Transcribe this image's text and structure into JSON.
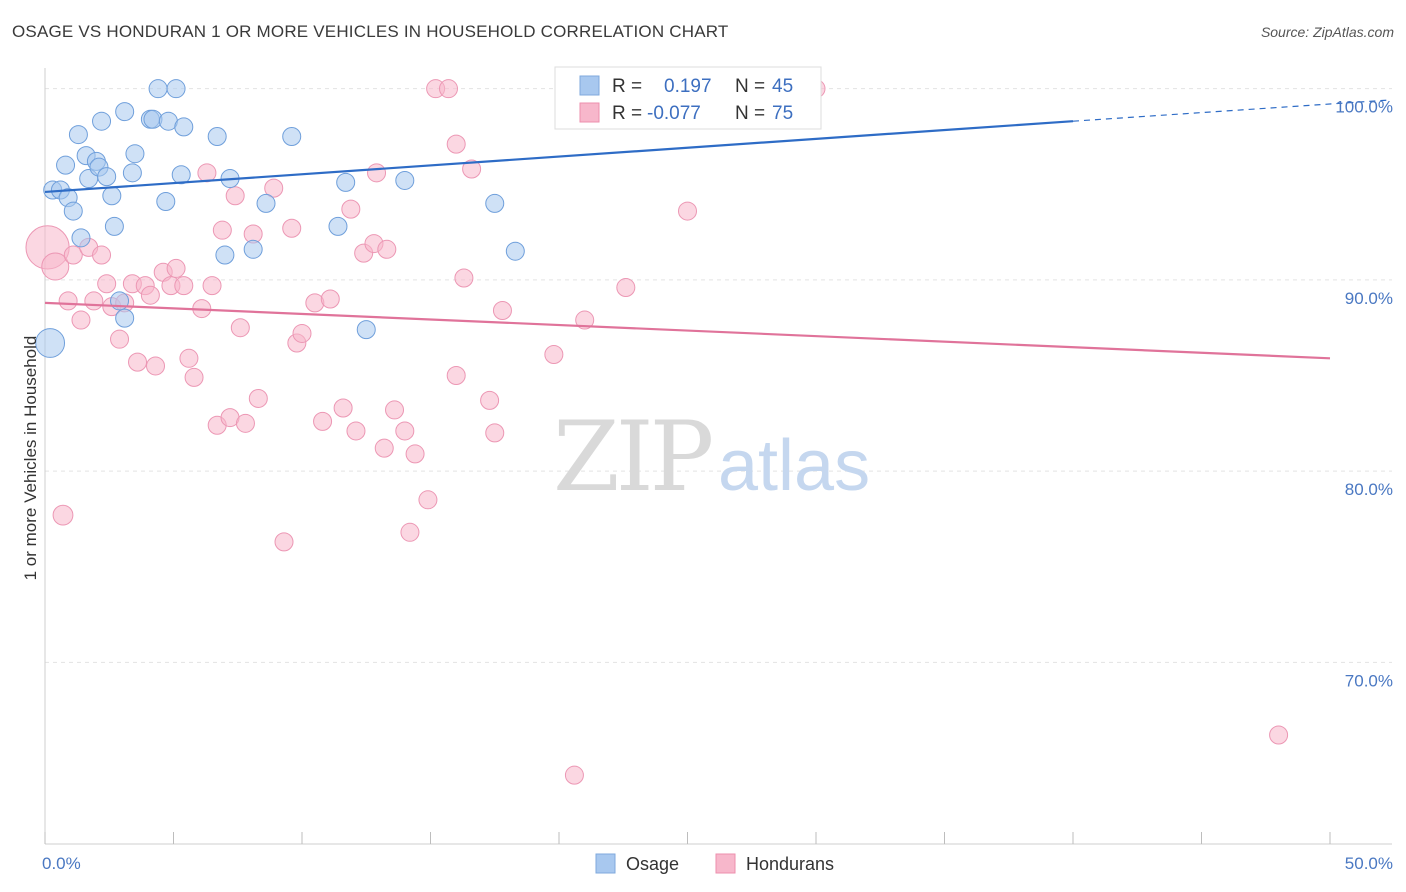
{
  "header": {
    "title": "OSAGE VS HONDURAN 1 OR MORE VEHICLES IN HOUSEHOLD CORRELATION CHART",
    "source": "Source: ZipAtlas.com"
  },
  "watermark": {
    "zip": "ZIP",
    "atlas": "atlas"
  },
  "chart_data": {
    "type": "scatter",
    "title": "OSAGE VS HONDURAN 1 OR MORE VEHICLES IN HOUSEHOLD CORRELATION CHART",
    "xlabel": "",
    "ylabel": "1 or more Vehicles in Household",
    "xlim": [
      0,
      50
    ],
    "ylim": [
      60.5,
      101.5
    ],
    "x_tick_labels": [
      "0.0%",
      "50.0%"
    ],
    "y_ticks": [
      70,
      80,
      90,
      100
    ],
    "y_tick_labels": [
      "70.0%",
      "80.0%",
      "90.0%",
      "100.0%"
    ],
    "grid": true,
    "legend_position": "top-center",
    "colors": {
      "osage": "#a8c8ef",
      "osage_line": "#2e6cc6",
      "hondurans": "#f7b7cb",
      "hondurans_line": "#e0739a"
    },
    "legend": [
      {
        "r_label": "R =",
        "r_value": "0.197",
        "n_label": "N =",
        "n_value": "45"
      },
      {
        "r_label": "R =",
        "r_value": "-0.077",
        "n_label": "N =",
        "n_value": "75"
      }
    ],
    "series": [
      {
        "name": "Osage",
        "trend": {
          "x0": 0,
          "y0": 94.6,
          "x1": 40,
          "y1": 98.3,
          "dash_to_x": 50,
          "dash_to_y": 99.2
        },
        "points": [
          [
            0.2,
            86.7,
            1.6
          ],
          [
            0.3,
            94.7,
            1
          ],
          [
            0.6,
            94.7,
            1
          ],
          [
            0.8,
            96.0,
            1
          ],
          [
            0.9,
            94.3,
            1
          ],
          [
            1.1,
            93.6,
            1
          ],
          [
            1.3,
            97.6,
            1
          ],
          [
            1.4,
            92.2,
            1
          ],
          [
            1.6,
            96.5,
            1
          ],
          [
            1.7,
            95.3,
            1
          ],
          [
            2.0,
            96.2,
            1
          ],
          [
            2.1,
            95.9,
            1
          ],
          [
            2.2,
            98.3,
            1
          ],
          [
            2.4,
            95.4,
            1
          ],
          [
            2.6,
            94.4,
            1
          ],
          [
            2.7,
            92.8,
            1
          ],
          [
            2.9,
            88.9,
            1
          ],
          [
            3.1,
            88.0,
            1
          ],
          [
            3.1,
            98.8,
            1
          ],
          [
            3.4,
            95.6,
            1
          ],
          [
            3.5,
            96.6,
            1
          ],
          [
            4.1,
            98.4,
            1
          ],
          [
            4.2,
            98.4,
            1
          ],
          [
            4.4,
            100.0,
            1
          ],
          [
            4.7,
            94.1,
            1
          ],
          [
            4.8,
            98.3,
            1
          ],
          [
            5.1,
            100.0,
            1
          ],
          [
            5.3,
            95.5,
            1
          ],
          [
            5.4,
            98.0,
            1
          ],
          [
            6.7,
            97.5,
            1
          ],
          [
            7.0,
            91.3,
            1
          ],
          [
            7.2,
            95.3,
            1
          ],
          [
            8.1,
            91.6,
            1
          ],
          [
            8.6,
            94.0,
            1
          ],
          [
            9.6,
            97.5,
            1
          ],
          [
            11.4,
            92.8,
            1
          ],
          [
            11.7,
            95.1,
            1
          ],
          [
            12.5,
            87.4,
            1
          ],
          [
            14.0,
            95.2,
            1
          ],
          [
            17.5,
            94.0,
            1
          ],
          [
            18.3,
            91.5,
            1
          ],
          [
            23.3,
            100.0,
            1
          ],
          [
            28.2,
            100.0,
            1
          ]
        ]
      },
      {
        "name": "Hondurans",
        "trend": {
          "x0": 0,
          "y0": 88.8,
          "x1": 50,
          "y1": 85.9
        },
        "points": [
          [
            0.1,
            91.7,
            2.4
          ],
          [
            0.4,
            90.7,
            1.5
          ],
          [
            0.7,
            77.7,
            1.1
          ],
          [
            0.9,
            88.9,
            1
          ],
          [
            1.1,
            91.3,
            1
          ],
          [
            1.4,
            87.9,
            1
          ],
          [
            1.7,
            91.7,
            1
          ],
          [
            1.9,
            88.9,
            1
          ],
          [
            2.2,
            91.3,
            1
          ],
          [
            2.4,
            89.8,
            1
          ],
          [
            2.6,
            88.6,
            1
          ],
          [
            2.9,
            86.9,
            1
          ],
          [
            3.1,
            88.8,
            1
          ],
          [
            3.4,
            89.8,
            1
          ],
          [
            3.6,
            85.7,
            1
          ],
          [
            3.9,
            89.7,
            1
          ],
          [
            4.1,
            89.2,
            1
          ],
          [
            4.3,
            85.5,
            1
          ],
          [
            4.6,
            90.4,
            1
          ],
          [
            4.9,
            89.7,
            1
          ],
          [
            5.1,
            90.6,
            1
          ],
          [
            5.4,
            89.7,
            1
          ],
          [
            5.6,
            85.9,
            1
          ],
          [
            5.8,
            84.9,
            1
          ],
          [
            6.1,
            88.5,
            1
          ],
          [
            6.3,
            95.6,
            1
          ],
          [
            6.5,
            89.7,
            1
          ],
          [
            6.7,
            82.4,
            1
          ],
          [
            6.9,
            92.6,
            1
          ],
          [
            7.2,
            82.8,
            1
          ],
          [
            7.4,
            94.4,
            1
          ],
          [
            7.6,
            87.5,
            1
          ],
          [
            7.8,
            82.5,
            1
          ],
          [
            8.1,
            92.4,
            1
          ],
          [
            8.3,
            83.8,
            1
          ],
          [
            8.9,
            94.8,
            1
          ],
          [
            9.3,
            76.3,
            1
          ],
          [
            9.6,
            92.7,
            1
          ],
          [
            9.8,
            86.7,
            1
          ],
          [
            10.0,
            87.2,
            1
          ],
          [
            10.5,
            88.8,
            1
          ],
          [
            10.8,
            82.6,
            1
          ],
          [
            11.1,
            89.0,
            1
          ],
          [
            11.6,
            83.3,
            1
          ],
          [
            11.9,
            93.7,
            1
          ],
          [
            12.1,
            82.1,
            1
          ],
          [
            12.4,
            91.4,
            1
          ],
          [
            12.8,
            91.9,
            1
          ],
          [
            12.9,
            95.6,
            1
          ],
          [
            13.2,
            81.2,
            1
          ],
          [
            13.3,
            91.6,
            1
          ],
          [
            13.6,
            83.2,
            1
          ],
          [
            14.0,
            82.1,
            1
          ],
          [
            14.2,
            76.8,
            1
          ],
          [
            14.4,
            80.9,
            1
          ],
          [
            14.9,
            78.5,
            1
          ],
          [
            15.2,
            100.0,
            1
          ],
          [
            15.7,
            100.0,
            1
          ],
          [
            16.0,
            97.1,
            1
          ],
          [
            16.0,
            85.0,
            1
          ],
          [
            16.3,
            90.1,
            1
          ],
          [
            16.6,
            95.8,
            1
          ],
          [
            17.3,
            83.7,
            1
          ],
          [
            17.5,
            82.0,
            1
          ],
          [
            17.8,
            88.4,
            1
          ],
          [
            19.8,
            86.1,
            1
          ],
          [
            20.6,
            64.1,
            1
          ],
          [
            21.0,
            87.9,
            1
          ],
          [
            22.6,
            89.6,
            1
          ],
          [
            25.0,
            93.6,
            1
          ],
          [
            30.0,
            100.0,
            1
          ],
          [
            48.0,
            66.2,
            1
          ]
        ]
      }
    ]
  }
}
